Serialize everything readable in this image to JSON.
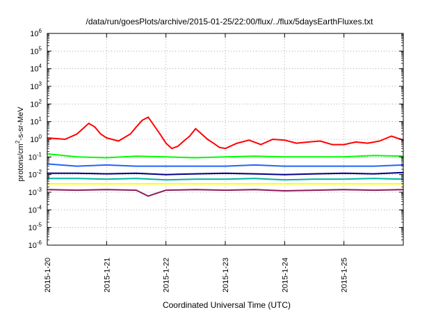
{
  "chart_data": {
    "type": "line",
    "title": "/data/run/goesPlots/archive/2015-01-25/22:00/flux/../flux/5daysEarthFluxes.txt",
    "xlabel": "Coordinated Universal Time (UTC)",
    "ylabel": {
      "prefix": "protons/cm",
      "sup": "2",
      "suffix": "-s-sr-MeV"
    },
    "x_range_days": [
      0,
      6
    ],
    "x_ticks": [
      {
        "day": 0,
        "label": "2015-1-20"
      },
      {
        "day": 1,
        "label": "2015-1-21"
      },
      {
        "day": 2,
        "label": "2015-1-22"
      },
      {
        "day": 3,
        "label": "2015-1-23"
      },
      {
        "day": 4,
        "label": "2015-1-24"
      },
      {
        "day": 5,
        "label": "2015-1-25"
      }
    ],
    "y_scale": "log",
    "y_exp_range": [
      -6,
      6
    ],
    "y_ticks": [
      {
        "exp": 6,
        "base": "10",
        "sup": "6"
      },
      {
        "exp": 5,
        "base": "10",
        "sup": "5"
      },
      {
        "exp": 4,
        "base": "10",
        "sup": "4"
      },
      {
        "exp": 3,
        "base": "10",
        "sup": "3"
      },
      {
        "exp": 2,
        "base": "10",
        "sup": "2"
      },
      {
        "exp": 1,
        "base": "10",
        "sup": "1"
      },
      {
        "exp": 0,
        "base": "10",
        "sup": "0"
      },
      {
        "exp": -1,
        "base": "10",
        "sup": "-1"
      },
      {
        "exp": -2,
        "base": "10",
        "sup": "-2"
      },
      {
        "exp": -3,
        "base": "10",
        "sup": "-3"
      },
      {
        "exp": -4,
        "base": "10",
        "sup": "-4"
      },
      {
        "exp": -5,
        "base": "10",
        "sup": "-5"
      },
      {
        "exp": -6,
        "base": "10",
        "sup": "-6"
      }
    ],
    "grid": true,
    "series": [
      {
        "color": "#ff0000",
        "x": [
          0,
          0.3,
          0.5,
          0.6,
          0.7,
          0.8,
          0.9,
          1.0,
          1.2,
          1.4,
          1.5,
          1.6,
          1.7,
          1.8,
          1.9,
          2.0,
          2.1,
          2.2,
          2.3,
          2.4,
          2.5,
          2.6,
          2.7,
          2.8,
          2.9,
          3.0,
          3.2,
          3.4,
          3.6,
          3.8,
          4.0,
          4.2,
          4.4,
          4.6,
          4.8,
          5.0,
          5.2,
          5.4,
          5.6,
          5.8,
          6.0
        ],
        "y": [
          1.2,
          1.0,
          2.0,
          4.0,
          8.0,
          5.0,
          2.0,
          1.2,
          0.8,
          2.0,
          5.0,
          12.0,
          18.0,
          6.0,
          2.0,
          0.6,
          0.3,
          0.4,
          0.8,
          1.5,
          4.0,
          2.0,
          1.0,
          0.6,
          0.35,
          0.3,
          0.6,
          0.9,
          0.5,
          1.0,
          0.9,
          0.6,
          0.7,
          0.8,
          0.5,
          0.5,
          0.7,
          0.6,
          0.8,
          1.5,
          0.9
        ]
      },
      {
        "color": "#00ff00",
        "x": [
          0,
          0.5,
          1.0,
          1.5,
          2.0,
          2.5,
          3.0,
          3.5,
          4.0,
          4.5,
          5.0,
          5.5,
          6.0
        ],
        "y": [
          0.15,
          0.1,
          0.09,
          0.11,
          0.1,
          0.09,
          0.1,
          0.11,
          0.1,
          0.1,
          0.1,
          0.12,
          0.11
        ]
      },
      {
        "color": "#1e64ff",
        "x": [
          0,
          0.5,
          1.0,
          1.5,
          2.0,
          2.5,
          3.0,
          3.5,
          4.0,
          4.5,
          5.0,
          5.5,
          6.0
        ],
        "y": [
          0.04,
          0.03,
          0.035,
          0.03,
          0.03,
          0.03,
          0.03,
          0.035,
          0.03,
          0.03,
          0.03,
          0.03,
          0.035
        ]
      },
      {
        "color": "#00008b",
        "x": [
          0,
          0.5,
          1.0,
          1.5,
          2.0,
          2.5,
          3.0,
          3.5,
          4.0,
          4.5,
          5.0,
          5.5,
          6.0
        ],
        "y": [
          0.012,
          0.012,
          0.011,
          0.012,
          0.01,
          0.011,
          0.012,
          0.011,
          0.01,
          0.011,
          0.012,
          0.011,
          0.013
        ]
      },
      {
        "color": "#00b4a0",
        "x": [
          0,
          0.5,
          1.0,
          1.5,
          2.0,
          2.5,
          3.0,
          3.5,
          4.0,
          4.5,
          5.0,
          5.5,
          6.0
        ],
        "y": [
          0.006,
          0.006,
          0.0055,
          0.006,
          0.005,
          0.0055,
          0.0055,
          0.006,
          0.005,
          0.0055,
          0.0055,
          0.006,
          0.0055
        ]
      },
      {
        "color": "#ffff00",
        "x": [
          0,
          1.0,
          2.0,
          3.0,
          4.0,
          5.0,
          6.0
        ],
        "y": [
          0.003,
          0.003,
          0.003,
          0.003,
          0.003,
          0.003,
          0.003
        ]
      },
      {
        "color": "#8b1a5a",
        "x": [
          0,
          0.5,
          1.0,
          1.5,
          1.7,
          2.0,
          2.5,
          3.0,
          3.5,
          4.0,
          4.5,
          5.0,
          5.5,
          6.0
        ],
        "y": [
          0.0014,
          0.0013,
          0.0014,
          0.0013,
          0.0006,
          0.0013,
          0.0014,
          0.0013,
          0.0014,
          0.0012,
          0.0013,
          0.0014,
          0.0013,
          0.0014
        ]
      }
    ]
  }
}
